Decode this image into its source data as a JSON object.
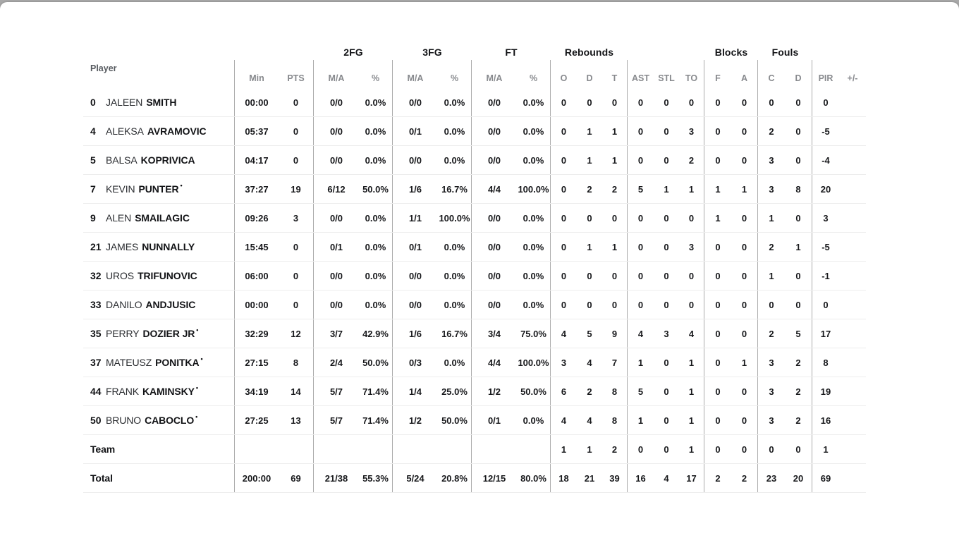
{
  "header": {
    "player_label": "Player",
    "groups": {
      "fg2": "2FG",
      "fg3": "3FG",
      "ft": "FT",
      "rebounds": "Rebounds",
      "blocks": "Blocks",
      "fouls": "Fouls"
    },
    "sub": {
      "min": "Min",
      "pts": "PTS",
      "ma": "M/A",
      "pct": "%",
      "o": "O",
      "d": "D",
      "t": "T",
      "ast": "AST",
      "stl": "STL",
      "to": "TO",
      "f": "F",
      "a": "A",
      "c": "C",
      "d2": "D",
      "pir": "PIR",
      "plusminus": "+/-"
    }
  },
  "rows": [
    {
      "type": "player",
      "num": "0",
      "first": "JALEEN",
      "last": "SMITH",
      "starter": false,
      "min": "00:00",
      "pts": "0",
      "fg2ma": "0/0",
      "fg2pct": "0.0%",
      "fg3ma": "0/0",
      "fg3pct": "0.0%",
      "ftma": "0/0",
      "ftpct": "0.0%",
      "or": "0",
      "dr": "0",
      "tr": "0",
      "ast": "0",
      "stl": "0",
      "to": "0",
      "blkf": "0",
      "blka": "0",
      "foulc": "0",
      "fould": "0",
      "pir": "0",
      "pm": ""
    },
    {
      "type": "player",
      "num": "4",
      "first": "ALEKSA",
      "last": "AVRAMOVIC",
      "starter": false,
      "min": "05:37",
      "pts": "0",
      "fg2ma": "0/0",
      "fg2pct": "0.0%",
      "fg3ma": "0/1",
      "fg3pct": "0.0%",
      "ftma": "0/0",
      "ftpct": "0.0%",
      "or": "0",
      "dr": "1",
      "tr": "1",
      "ast": "0",
      "stl": "0",
      "to": "3",
      "blkf": "0",
      "blka": "0",
      "foulc": "2",
      "fould": "0",
      "pir": "-5",
      "pm": ""
    },
    {
      "type": "player",
      "num": "5",
      "first": "BALSA",
      "last": "KOPRIVICA",
      "starter": false,
      "min": "04:17",
      "pts": "0",
      "fg2ma": "0/0",
      "fg2pct": "0.0%",
      "fg3ma": "0/0",
      "fg3pct": "0.0%",
      "ftma": "0/0",
      "ftpct": "0.0%",
      "or": "0",
      "dr": "1",
      "tr": "1",
      "ast": "0",
      "stl": "0",
      "to": "2",
      "blkf": "0",
      "blka": "0",
      "foulc": "3",
      "fould": "0",
      "pir": "-4",
      "pm": ""
    },
    {
      "type": "player",
      "num": "7",
      "first": "KEVIN",
      "last": "PUNTER",
      "starter": true,
      "min": "37:27",
      "pts": "19",
      "fg2ma": "6/12",
      "fg2pct": "50.0%",
      "fg3ma": "1/6",
      "fg3pct": "16.7%",
      "ftma": "4/4",
      "ftpct": "100.0%",
      "or": "0",
      "dr": "2",
      "tr": "2",
      "ast": "5",
      "stl": "1",
      "to": "1",
      "blkf": "1",
      "blka": "1",
      "foulc": "3",
      "fould": "8",
      "pir": "20",
      "pm": ""
    },
    {
      "type": "player",
      "num": "9",
      "first": "ALEN",
      "last": "SMAILAGIC",
      "starter": false,
      "min": "09:26",
      "pts": "3",
      "fg2ma": "0/0",
      "fg2pct": "0.0%",
      "fg3ma": "1/1",
      "fg3pct": "100.0%",
      "ftma": "0/0",
      "ftpct": "0.0%",
      "or": "0",
      "dr": "0",
      "tr": "0",
      "ast": "0",
      "stl": "0",
      "to": "0",
      "blkf": "1",
      "blka": "0",
      "foulc": "1",
      "fould": "0",
      "pir": "3",
      "pm": ""
    },
    {
      "type": "player",
      "num": "21",
      "first": "JAMES",
      "last": "NUNNALLY",
      "starter": false,
      "min": "15:45",
      "pts": "0",
      "fg2ma": "0/1",
      "fg2pct": "0.0%",
      "fg3ma": "0/1",
      "fg3pct": "0.0%",
      "ftma": "0/0",
      "ftpct": "0.0%",
      "or": "0",
      "dr": "1",
      "tr": "1",
      "ast": "0",
      "stl": "0",
      "to": "3",
      "blkf": "0",
      "blka": "0",
      "foulc": "2",
      "fould": "1",
      "pir": "-5",
      "pm": ""
    },
    {
      "type": "player",
      "num": "32",
      "first": "UROS",
      "last": "TRIFUNOVIC",
      "starter": false,
      "min": "06:00",
      "pts": "0",
      "fg2ma": "0/0",
      "fg2pct": "0.0%",
      "fg3ma": "0/0",
      "fg3pct": "0.0%",
      "ftma": "0/0",
      "ftpct": "0.0%",
      "or": "0",
      "dr": "0",
      "tr": "0",
      "ast": "0",
      "stl": "0",
      "to": "0",
      "blkf": "0",
      "blka": "0",
      "foulc": "1",
      "fould": "0",
      "pir": "-1",
      "pm": ""
    },
    {
      "type": "player",
      "num": "33",
      "first": "DANILO",
      "last": "ANDJUSIC",
      "starter": false,
      "min": "00:00",
      "pts": "0",
      "fg2ma": "0/0",
      "fg2pct": "0.0%",
      "fg3ma": "0/0",
      "fg3pct": "0.0%",
      "ftma": "0/0",
      "ftpct": "0.0%",
      "or": "0",
      "dr": "0",
      "tr": "0",
      "ast": "0",
      "stl": "0",
      "to": "0",
      "blkf": "0",
      "blka": "0",
      "foulc": "0",
      "fould": "0",
      "pir": "0",
      "pm": ""
    },
    {
      "type": "player",
      "num": "35",
      "first": "PERRY",
      "last": "DOZIER JR",
      "starter": true,
      "min": "32:29",
      "pts": "12",
      "fg2ma": "3/7",
      "fg2pct": "42.9%",
      "fg3ma": "1/6",
      "fg3pct": "16.7%",
      "ftma": "3/4",
      "ftpct": "75.0%",
      "or": "4",
      "dr": "5",
      "tr": "9",
      "ast": "4",
      "stl": "3",
      "to": "4",
      "blkf": "0",
      "blka": "0",
      "foulc": "2",
      "fould": "5",
      "pir": "17",
      "pm": ""
    },
    {
      "type": "player",
      "num": "37",
      "first": "MATEUSZ",
      "last": "PONITKA",
      "starter": true,
      "min": "27:15",
      "pts": "8",
      "fg2ma": "2/4",
      "fg2pct": "50.0%",
      "fg3ma": "0/3",
      "fg3pct": "0.0%",
      "ftma": "4/4",
      "ftpct": "100.0%",
      "or": "3",
      "dr": "4",
      "tr": "7",
      "ast": "1",
      "stl": "0",
      "to": "1",
      "blkf": "0",
      "blka": "1",
      "foulc": "3",
      "fould": "2",
      "pir": "8",
      "pm": ""
    },
    {
      "type": "player",
      "num": "44",
      "first": "FRANK",
      "last": "KAMINSKY",
      "starter": true,
      "min": "34:19",
      "pts": "14",
      "fg2ma": "5/7",
      "fg2pct": "71.4%",
      "fg3ma": "1/4",
      "fg3pct": "25.0%",
      "ftma": "1/2",
      "ftpct": "50.0%",
      "or": "6",
      "dr": "2",
      "tr": "8",
      "ast": "5",
      "stl": "0",
      "to": "1",
      "blkf": "0",
      "blka": "0",
      "foulc": "3",
      "fould": "2",
      "pir": "19",
      "pm": ""
    },
    {
      "type": "player",
      "num": "50",
      "first": "BRUNO",
      "last": "CABOCLO",
      "starter": true,
      "min": "27:25",
      "pts": "13",
      "fg2ma": "5/7",
      "fg2pct": "71.4%",
      "fg3ma": "1/2",
      "fg3pct": "50.0%",
      "ftma": "0/1",
      "ftpct": "0.0%",
      "or": "4",
      "dr": "4",
      "tr": "8",
      "ast": "1",
      "stl": "0",
      "to": "1",
      "blkf": "0",
      "blka": "0",
      "foulc": "3",
      "fould": "2",
      "pir": "16",
      "pm": ""
    },
    {
      "type": "team",
      "label": "Team",
      "min": "",
      "pts": "",
      "fg2ma": "",
      "fg2pct": "",
      "fg3ma": "",
      "fg3pct": "",
      "ftma": "",
      "ftpct": "",
      "or": "1",
      "dr": "1",
      "tr": "2",
      "ast": "0",
      "stl": "0",
      "to": "1",
      "blkf": "0",
      "blka": "0",
      "foulc": "0",
      "fould": "0",
      "pir": "1",
      "pm": ""
    },
    {
      "type": "total",
      "label": "Total",
      "min": "200:00",
      "pts": "69",
      "fg2ma": "21/38",
      "fg2pct": "55.3%",
      "fg3ma": "5/24",
      "fg3pct": "20.8%",
      "ftma": "12/15",
      "ftpct": "80.0%",
      "or": "18",
      "dr": "21",
      "tr": "39",
      "ast": "16",
      "stl": "4",
      "to": "17",
      "blkf": "2",
      "blka": "2",
      "foulc": "23",
      "fould": "20",
      "pir": "69",
      "pm": ""
    }
  ]
}
